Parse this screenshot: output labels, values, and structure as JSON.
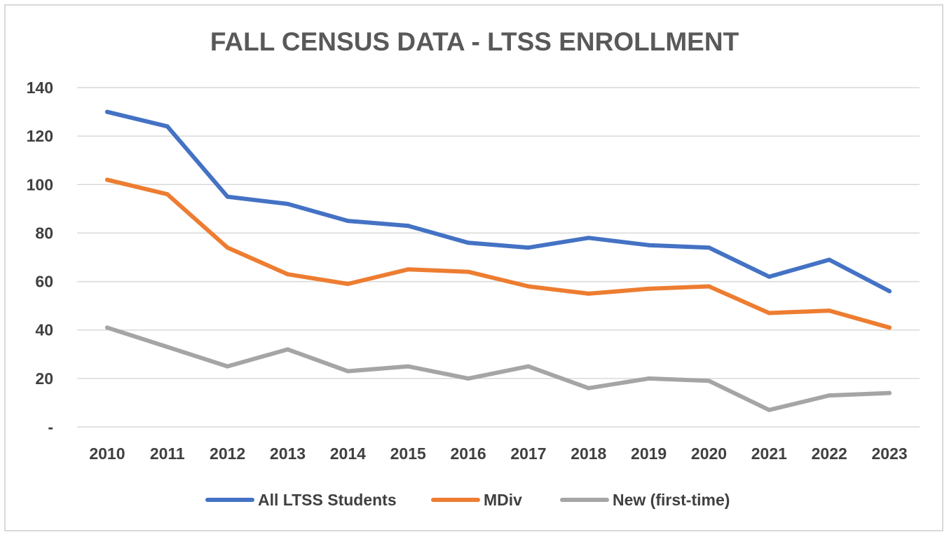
{
  "chart_data": {
    "type": "line",
    "title": "FALL CENSUS DATA - LTSS ENROLLMENT",
    "xlabel": "",
    "ylabel": "",
    "categories": [
      "2010",
      "2011",
      "2012",
      "2013",
      "2014",
      "2015",
      "2016",
      "2017",
      "2018",
      "2019",
      "2020",
      "2021",
      "2022",
      "2023"
    ],
    "ylim": [
      0,
      140
    ],
    "yticks": [
      0,
      20,
      40,
      60,
      80,
      100,
      120,
      140
    ],
    "ytick_labels": [
      "-",
      "20",
      "40",
      "60",
      "80",
      "100",
      "120",
      "140"
    ],
    "grid": true,
    "legend_position": "bottom",
    "series": [
      {
        "name": "All LTSS Students",
        "color": "#4472C4",
        "values": [
          130,
          124,
          95,
          92,
          85,
          83,
          76,
          74,
          78,
          75,
          74,
          62,
          69,
          56
        ]
      },
      {
        "name": "MDiv",
        "color": "#ED7D31",
        "values": [
          102,
          96,
          74,
          63,
          59,
          65,
          64,
          58,
          55,
          57,
          58,
          47,
          48,
          41
        ]
      },
      {
        "name": "New (first-time)",
        "color": "#A5A5A5",
        "values": [
          41,
          33,
          25,
          32,
          23,
          25,
          20,
          25,
          16,
          20,
          19,
          7,
          13,
          14
        ]
      }
    ]
  }
}
